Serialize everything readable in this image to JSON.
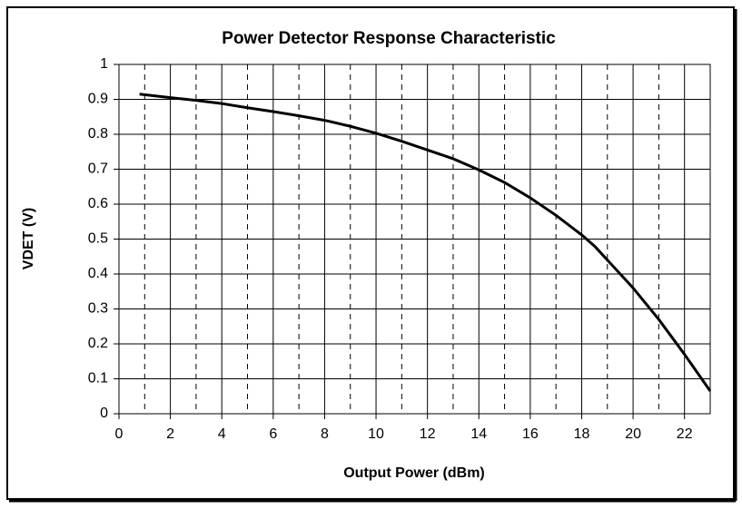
{
  "chart_data": {
    "type": "line",
    "title": "Power Detector Response Characteristic",
    "x_label": "Output Power (dBm)",
    "y_label": "VDET (V)",
    "x": [
      0.8,
      2,
      3,
      4,
      5,
      6,
      7,
      8,
      9,
      10,
      11,
      12,
      13,
      14,
      15,
      16,
      17,
      18,
      18.5,
      19,
      20,
      21,
      22,
      23
    ],
    "series": [
      {
        "color": "#000000",
        "values": [
          0.915,
          0.905,
          0.897,
          0.888,
          0.876,
          0.865,
          0.853,
          0.84,
          0.823,
          0.803,
          0.78,
          0.755,
          0.73,
          0.698,
          0.662,
          0.618,
          0.568,
          0.512,
          0.48,
          0.44,
          0.36,
          0.27,
          0.17,
          0.065
        ]
      }
    ],
    "xlim": [
      0,
      23
    ],
    "xticks": [
      0,
      2,
      4,
      6,
      8,
      10,
      12,
      14,
      16,
      18,
      20,
      22
    ],
    "x_minor_ticks": [
      1,
      3,
      5,
      7,
      9,
      11,
      13,
      15,
      17,
      19,
      21
    ],
    "ylim": [
      0,
      1
    ],
    "yticks": [
      0,
      0.1,
      0.2,
      0.3,
      0.4,
      0.5,
      0.6,
      0.7,
      0.8,
      0.9,
      1
    ],
    "grid": true
  }
}
